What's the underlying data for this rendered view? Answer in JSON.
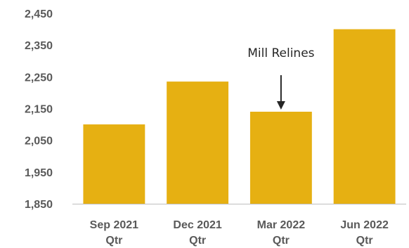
{
  "chart_data": {
    "type": "bar",
    "categories": [
      [
        "Sep 2021",
        "Qtr"
      ],
      [
        "Dec 2021",
        "Qtr"
      ],
      [
        "Mar 2022",
        "Qtr"
      ],
      [
        "Jun 2022",
        "Qtr"
      ]
    ],
    "values": [
      2100,
      2235,
      2140,
      2400
    ],
    "ylim": [
      1850,
      2450
    ],
    "yticks": [
      "2,450",
      "2,350",
      "2,250",
      "2,150",
      "2,050",
      "1,950",
      "1,850"
    ],
    "ytick_values": [
      2450,
      2350,
      2250,
      2150,
      2050,
      1950,
      1850
    ],
    "grid": false,
    "bar_color": "#E6B012",
    "axis_color": "#bfbfbf",
    "annotation": {
      "text": "Mill Relines",
      "category_index": 2
    }
  }
}
